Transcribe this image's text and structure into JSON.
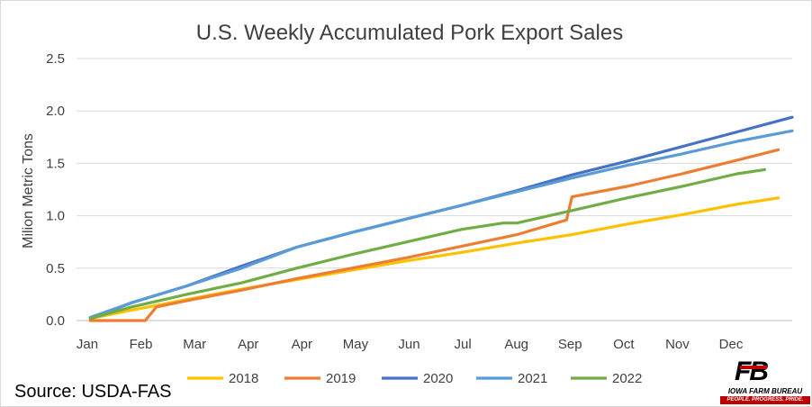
{
  "chart_data": {
    "type": "line",
    "title": "U.S. Weekly Accumulated Pork Export Sales",
    "ylabel": "Milion Metric Tons",
    "xlabel": "",
    "ylim": [
      0,
      2.5
    ],
    "yticks": [
      0.0,
      0.5,
      1.0,
      1.5,
      2.0,
      2.5
    ],
    "ytick_labels": [
      "0.0",
      "0.5",
      "1.0",
      "1.5",
      "2.0",
      "2.5"
    ],
    "xtick_labels": [
      "Jan",
      "Feb",
      "Mar",
      "Apr",
      "Apr",
      "May",
      "Jun",
      "Jul",
      "Aug",
      "Sep",
      "Oct",
      "Nov",
      "Dec"
    ],
    "xlim": [
      0,
      52
    ],
    "grid": true,
    "legend_position": "bottom",
    "series": [
      {
        "name": "2018",
        "color": "#FFC000",
        "x": [
          1,
          4,
          8,
          12,
          16,
          20,
          24,
          28,
          32,
          36,
          40,
          44,
          48,
          51
        ],
        "y": [
          0.02,
          0.1,
          0.2,
          0.3,
          0.39,
          0.48,
          0.57,
          0.65,
          0.74,
          0.82,
          0.92,
          1.01,
          1.11,
          1.17
        ]
      },
      {
        "name": "2019",
        "color": "#ED7D31",
        "x": [
          1,
          5,
          5.8,
          8,
          12,
          16,
          20,
          24,
          28,
          32,
          35.6,
          36,
          40,
          44,
          48,
          51
        ],
        "y": [
          0.0,
          0.0,
          0.13,
          0.19,
          0.29,
          0.4,
          0.5,
          0.6,
          0.71,
          0.82,
          0.96,
          1.18,
          1.28,
          1.4,
          1.53,
          1.63
        ]
      },
      {
        "name": "2020",
        "color": "#4472C4",
        "x": [
          1,
          4,
          8,
          12,
          16,
          20,
          24,
          28,
          32,
          36,
          40,
          44,
          48,
          52
        ],
        "y": [
          0.02,
          0.17,
          0.33,
          0.52,
          0.7,
          0.84,
          0.97,
          1.1,
          1.24,
          1.39,
          1.52,
          1.66,
          1.8,
          1.94
        ]
      },
      {
        "name": "2021",
        "color": "#5B9BD5",
        "x": [
          1,
          4,
          8,
          12,
          16,
          20,
          24,
          28,
          32,
          36,
          40,
          44,
          48,
          52
        ],
        "y": [
          0.03,
          0.17,
          0.33,
          0.5,
          0.7,
          0.84,
          0.97,
          1.1,
          1.23,
          1.36,
          1.48,
          1.59,
          1.71,
          1.81
        ]
      },
      {
        "name": "2022",
        "color": "#70AD47",
        "x": [
          1,
          4,
          8,
          12,
          16,
          20,
          24,
          28,
          31,
          32,
          36,
          40,
          44,
          48,
          50
        ],
        "y": [
          0.02,
          0.13,
          0.25,
          0.36,
          0.5,
          0.63,
          0.75,
          0.87,
          0.93,
          0.93,
          1.05,
          1.17,
          1.28,
          1.4,
          1.44
        ]
      }
    ]
  },
  "footer": {
    "source": "Source: USDA-FAS",
    "logo_mark": "FB",
    "logo_name": "IOWA FARM BUREAU",
    "logo_tagline": "PEOPLE. PROGRESS. PRIDE."
  }
}
